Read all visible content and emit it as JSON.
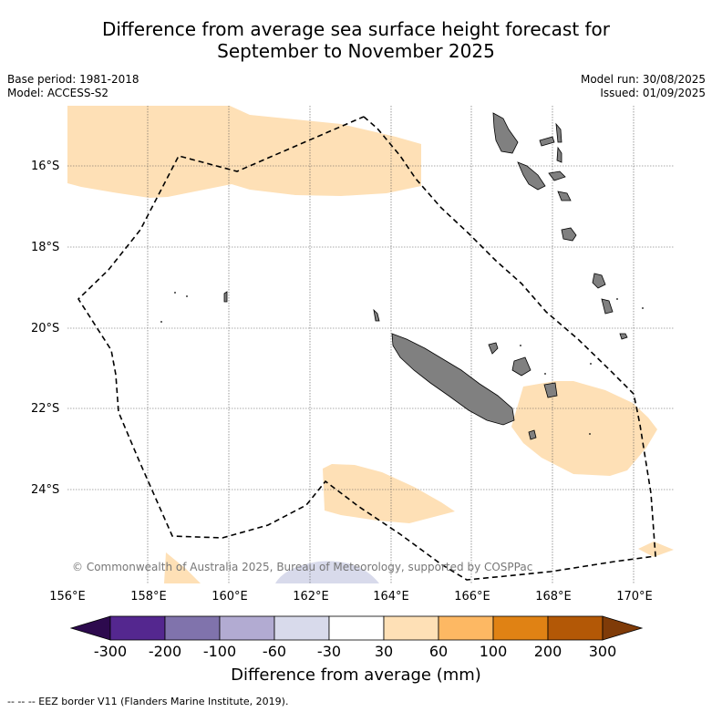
{
  "title_line1": "Difference from average sea surface height forecast for",
  "title_line2": "September to November 2025",
  "base_period": "Base period: 1981-2018",
  "model": "Model: ACCESS-S2",
  "model_run": "Model run: 30/08/2025",
  "issued": "Issued: 01/09/2025",
  "y_ticks": [
    "16°S",
    "18°S",
    "20°S",
    "22°S",
    "24°S"
  ],
  "x_ticks": [
    "156°E",
    "158°E",
    "160°E",
    "162°E",
    "164°E",
    "166°E",
    "168°E",
    "170°E"
  ],
  "copyright": "© Commonwealth of Australia 2025, Bureau of Meteorology, supported by COSPPac",
  "colorbar": {
    "label": "Difference from average (mm)",
    "ticks": [
      "-300",
      "-200",
      "-100",
      "-60",
      "-30",
      "30",
      "60",
      "100",
      "200",
      "300"
    ],
    "colors": [
      "#2d0a4e",
      "#54278f",
      "#8073ac",
      "#b2abd2",
      "#d8daeb",
      "#ffffff",
      "#fee0b6",
      "#fdb863",
      "#e08214",
      "#b35806",
      "#7f3b08"
    ]
  },
  "footer": "-- -- -- EEZ border V11 (Flanders Marine Institute, 2019).",
  "colors": {
    "land": "#808080",
    "positive_anomaly": "#fee0b6",
    "negative_anomaly": "#d8daeb"
  }
}
